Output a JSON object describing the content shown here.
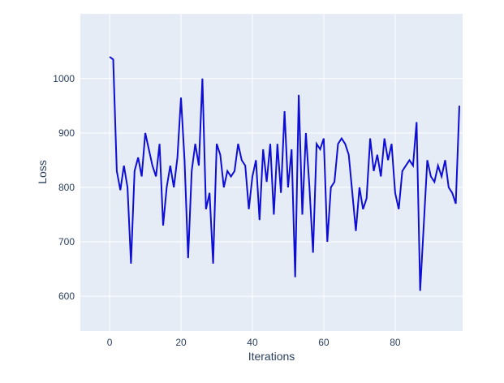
{
  "chart": {
    "xlabel": "Iterations",
    "ylabel": "Loss",
    "x_ticks": [
      0,
      20,
      40,
      60,
      80
    ],
    "y_ticks": [
      600,
      700,
      800,
      900,
      1000
    ],
    "colors": {
      "plot_bg": "#e5ecf6",
      "grid": "#ffffff",
      "line": "#0d0dd6",
      "text": "#2a3f5f",
      "page_bg": "#ffffff"
    }
  },
  "chart_data": {
    "type": "line",
    "title": "",
    "xlabel": "Iterations",
    "ylabel": "Loss",
    "legend": "none",
    "grid": true,
    "x_range": [
      -8.2,
      98.9
    ],
    "y_range": [
      536,
      1119
    ],
    "series": [
      {
        "name": "loss",
        "x_start": 0,
        "x_step": 1,
        "values": [
          1040,
          1035,
          830,
          795,
          840,
          800,
          660,
          830,
          855,
          820,
          900,
          870,
          840,
          820,
          880,
          730,
          800,
          840,
          800,
          855,
          965,
          850,
          670,
          830,
          880,
          840,
          1000,
          760,
          790,
          660,
          880,
          860,
          800,
          830,
          820,
          830,
          880,
          850,
          840,
          760,
          820,
          850,
          740,
          870,
          810,
          880,
          750,
          880,
          790,
          940,
          800,
          870,
          635,
          970,
          750,
          900,
          800,
          680,
          880,
          870,
          890,
          700,
          800,
          810,
          880,
          890,
          880,
          860,
          790,
          720,
          800,
          760,
          780,
          890,
          830,
          860,
          820,
          890,
          850,
          880,
          790,
          760,
          830,
          840,
          850,
          840,
          920,
          610,
          730,
          850,
          820,
          810,
          840,
          820,
          850,
          800,
          790,
          770,
          950
        ]
      }
    ]
  }
}
